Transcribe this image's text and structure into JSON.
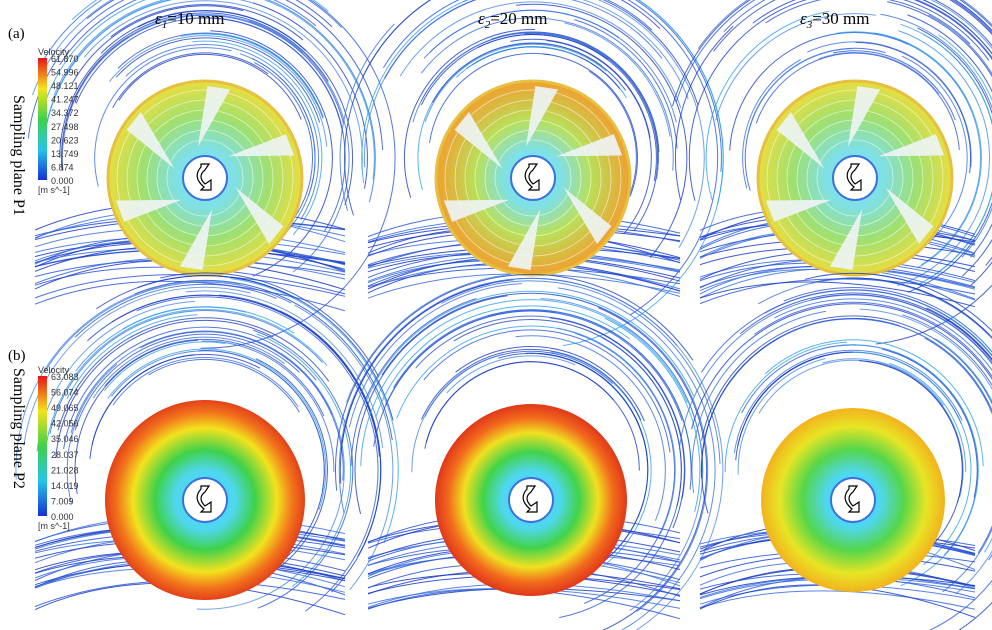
{
  "columns": [
    {
      "symbol": "ε",
      "sub": "1",
      "text": "=10 mm"
    },
    {
      "symbol": "ε",
      "sub": "2",
      "text": "=20 mm"
    },
    {
      "symbol": "ε",
      "sub": "3",
      "text": "=30 mm"
    }
  ],
  "rows": [
    {
      "tag": "(a)",
      "label": "Sampling plane P1",
      "colorbar": {
        "title": "Velocity",
        "ticks": [
          "61.870",
          "54.996",
          "48.121",
          "41.247",
          "34.372",
          "27.498",
          "20.623",
          "13.749",
          "6.874",
          "0.000"
        ],
        "unit": "[m s^-1]"
      }
    },
    {
      "tag": "(b)",
      "label": "Sampling plane P2",
      "colorbar": {
        "title": "Velocity",
        "ticks": [
          "63.083",
          "56.074",
          "49.065",
          "42.056",
          "35.046",
          "28.037",
          "21.028",
          "14.019",
          "7.009",
          "0.000"
        ],
        "unit": "[m s^-1]"
      }
    }
  ]
}
